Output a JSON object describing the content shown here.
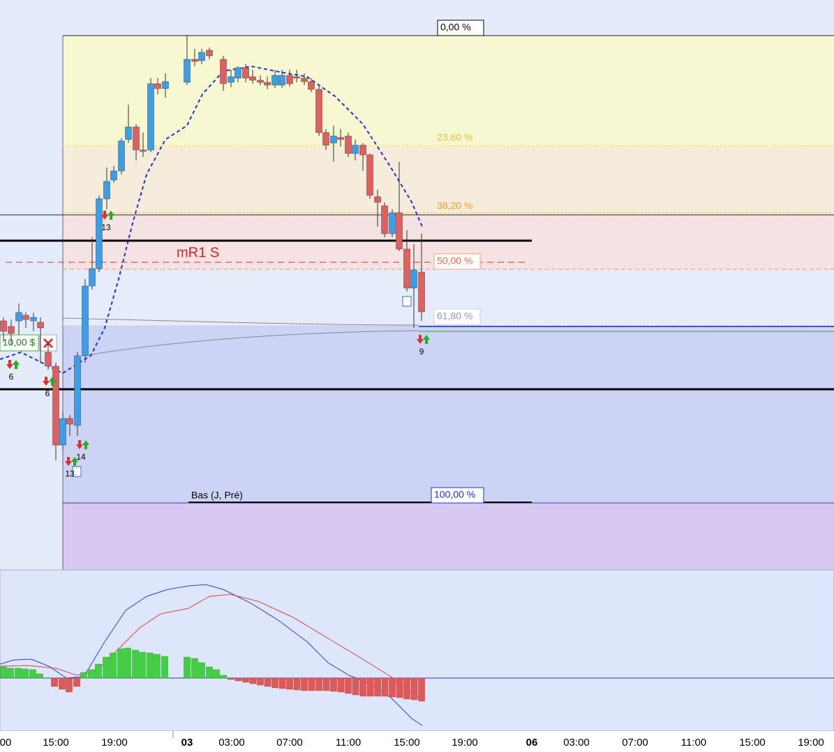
{
  "fibonacci_levels": [
    "0,00 %",
    "23,60 %",
    "38,20 %",
    "50,00 %",
    "61,80 %",
    "100,00 %"
  ],
  "annotations": {
    "pivot": "mR1 S",
    "low_label": "Bas (J, Pré)",
    "order_price": "10,00 $"
  },
  "signal_counts": [
    "13",
    "6",
    "6",
    "14",
    "13",
    "9"
  ],
  "x_axis": {
    "labels": [
      "00",
      "15:00",
      "19:00",
      "03",
      "03:00",
      "07:00",
      "11:00",
      "15:00",
      "19:00",
      "06",
      "03:00",
      "07:00",
      "11:00",
      "15:00",
      "19:00"
    ]
  }
}
